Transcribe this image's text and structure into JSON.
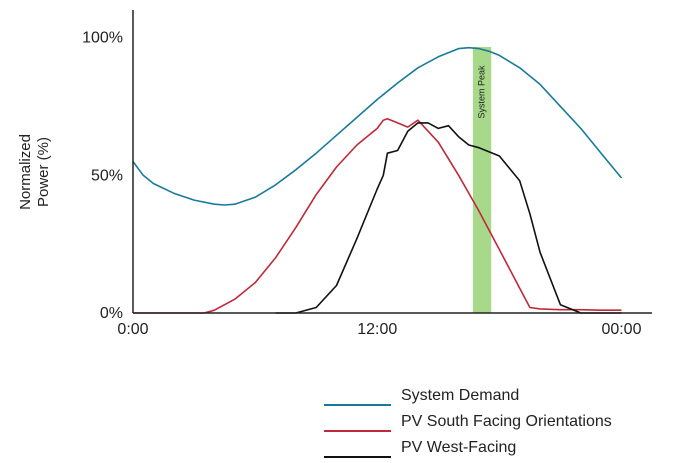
{
  "chart_data": {
    "type": "line",
    "title": "",
    "xlabel": "",
    "ylabel_lines": [
      "Normalized",
      "Power (%)"
    ],
    "x_ticks": [
      {
        "hour": 0,
        "label": "0:00"
      },
      {
        "hour": 12,
        "label": "12:00"
      },
      {
        "hour": 24,
        "label": "00:00"
      }
    ],
    "y_ticks": [
      {
        "value": 0,
        "label": "0%"
      },
      {
        "value": 50,
        "label": "50%"
      },
      {
        "value": 100,
        "label": "100%"
      }
    ],
    "xlim": [
      0,
      25.5
    ],
    "ylim": [
      0,
      110
    ],
    "grid": false,
    "legend_position": "bottom-right",
    "highlight": {
      "label": "System Peak",
      "x_start": 16.7,
      "x_end": 17.6,
      "color": "#a8d98a"
    },
    "series": [
      {
        "name": "System Demand",
        "color": "#1a7a9c",
        "x": [
          0,
          0.5,
          1,
          2,
          3,
          4,
          4.5,
          5,
          6,
          7,
          8,
          9,
          10,
          11,
          12,
          13,
          14,
          15,
          16,
          16.5,
          17,
          17.5,
          18,
          19,
          20,
          21,
          22,
          23,
          24
        ],
        "y": [
          55,
          50,
          47,
          43.5,
          41,
          39.5,
          39.2,
          39.5,
          42,
          46.5,
          52,
          58,
          64.5,
          71,
          77.5,
          83.5,
          89,
          93,
          96,
          96.3,
          96,
          95,
          93.5,
          89,
          83,
          75,
          67,
          58,
          49
        ]
      },
      {
        "name": "PV South Facing Orientations",
        "color": "#c0283c",
        "x": [
          0,
          1,
          2,
          3,
          3.5,
          4,
          5,
          6,
          7,
          8,
          9,
          10,
          11,
          12,
          12.3,
          12.5,
          13,
          13.5,
          14,
          15,
          16,
          17,
          18,
          19,
          19.5,
          20,
          21,
          22,
          23,
          24
        ],
        "y": [
          0,
          0,
          0,
          0,
          0,
          1,
          5,
          11,
          20,
          31,
          43,
          53,
          61,
          67,
          70,
          70.5,
          69,
          67.5,
          70,
          62,
          50,
          37,
          23,
          9,
          2,
          1.5,
          1.2,
          1.2,
          1,
          1
        ]
      },
      {
        "name": "PV West-Facing",
        "color": "#111111",
        "x": [
          7,
          8,
          9,
          10,
          11,
          12,
          12.3,
          12.5,
          13,
          13.5,
          14,
          14.5,
          15,
          15.5,
          16,
          16.5,
          17,
          18,
          19,
          19.5,
          20,
          21,
          22,
          23,
          24
        ],
        "y": [
          0,
          0,
          2,
          10,
          27,
          45,
          50,
          58,
          59,
          66,
          69,
          69,
          67,
          68,
          64,
          61,
          60,
          57,
          48,
          36,
          22,
          3,
          0,
          0,
          0
        ]
      }
    ]
  }
}
